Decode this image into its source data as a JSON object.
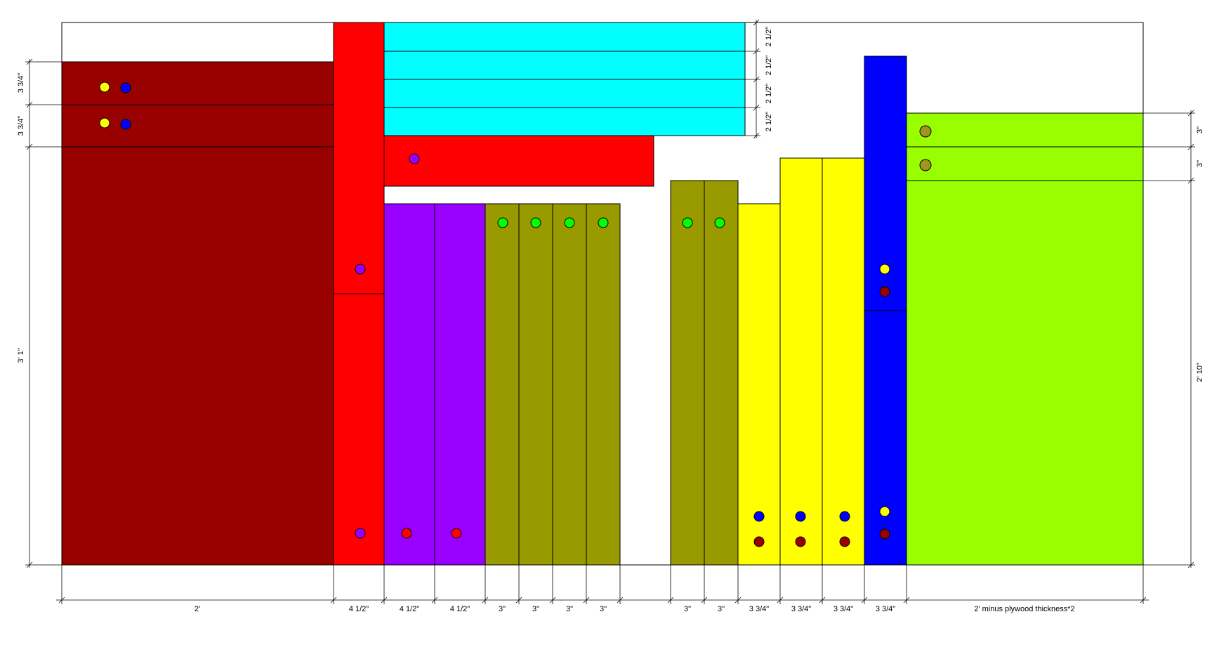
{
  "colors": {
    "maroon": "#990000",
    "red": "#ff0000",
    "cyan": "#00ffff",
    "purple": "#9900ff",
    "olive": "#999900",
    "yellow": "#ffff00",
    "blue": "#0000ff",
    "lime": "#99ff00",
    "green": "#00ff00",
    "khaki": "#a09520"
  },
  "bottom_dimensions": [
    "2'",
    "4 1/2\"",
    "4 1/2\"",
    "4 1/2\"",
    "3\"",
    "3\"",
    "3\"",
    "3\"",
    "3\"",
    "3\"",
    "3 3/4\"",
    "3 3/4\"",
    "3 3/4\"",
    "3 3/4\"",
    "2' minus plywood thickness*2"
  ],
  "left_dimensions": [
    "3 3/4\"",
    "3 3/4\"",
    "3' 1\""
  ],
  "top_right_dimensions": [
    "2 1/2\"",
    "2 1/2\"",
    "2 1/2\"",
    "2 1/2\""
  ],
  "right_dimensions": [
    "3\"",
    "3\"",
    "2' 10\""
  ]
}
